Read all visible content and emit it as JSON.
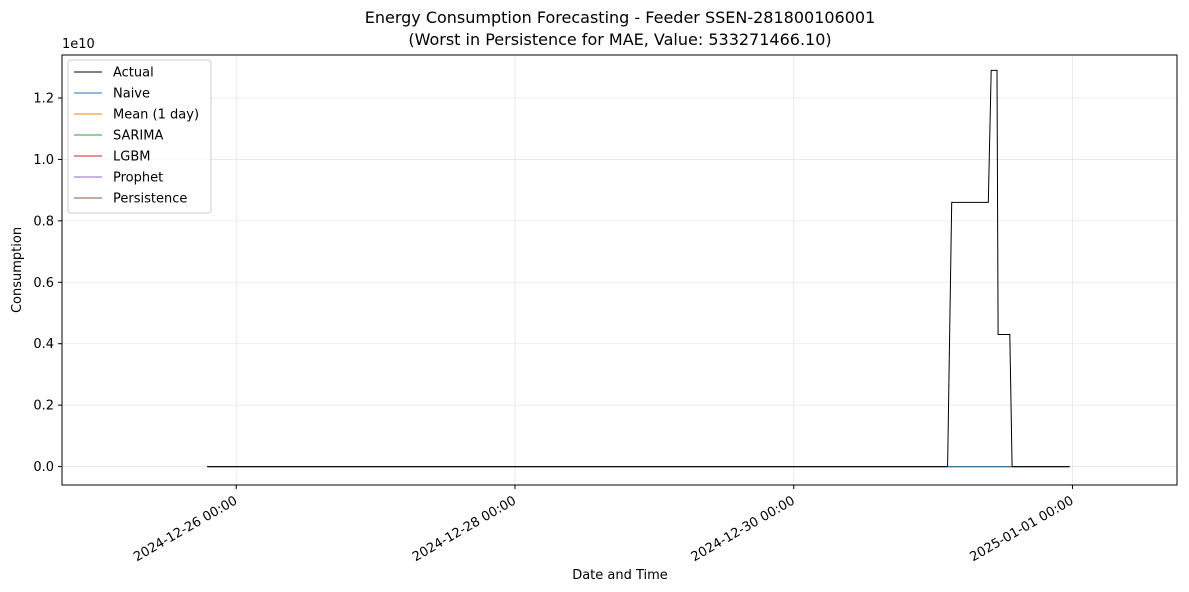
{
  "chart_data": {
    "type": "line",
    "title": "Energy Consumption Forecasting - Feeder SSEN-281800106001",
    "subtitle": "(Worst in Persistence for MAE, Value: 533271466.10)",
    "xlabel": "Date and Time",
    "ylabel": "Consumption",
    "y_offset_label": "1e10",
    "x_range_hours": [
      -30,
      162
    ],
    "y_range": [
      -0.06,
      1.34
    ],
    "y_scale_note": "y values expressed in units of 1e10",
    "x_ticks": [
      {
        "hours": 0,
        "label": "2024-12-26 00:00"
      },
      {
        "hours": 48,
        "label": "2024-12-28 00:00"
      },
      {
        "hours": 96,
        "label": "2024-12-30 00:00"
      },
      {
        "hours": 144,
        "label": "2025-01-01 00:00"
      }
    ],
    "y_ticks": [
      {
        "value": 0.0,
        "label": "0.0"
      },
      {
        "value": 0.2,
        "label": "0.2"
      },
      {
        "value": 0.4,
        "label": "0.4"
      },
      {
        "value": 0.6,
        "label": "0.6"
      },
      {
        "value": 0.8,
        "label": "0.8"
      },
      {
        "value": 1.0,
        "label": "1.0"
      },
      {
        "value": 1.2,
        "label": "1.2"
      }
    ],
    "grid": true,
    "legend_position": "top-left",
    "series": [
      {
        "name": "Actual",
        "color": "#000000",
        "x": [
          -5,
          122.5,
          123.2,
          129.5,
          130.0,
          131.0,
          131.2,
          132.2,
          132.4,
          133.2,
          133.6,
          143.5
        ],
        "y": [
          0,
          0,
          0.86,
          0.86,
          1.29,
          1.29,
          0.43,
          0.43,
          0.43,
          0.43,
          0,
          0
        ]
      },
      {
        "name": "Naive",
        "color": "#1f77b4",
        "x": [
          -5,
          143.5
        ],
        "y": [
          0,
          0
        ]
      },
      {
        "name": "Mean (1 day)",
        "color": "#ff7f0e",
        "x": [
          -5,
          143.5
        ],
        "y": [
          0,
          0
        ]
      },
      {
        "name": "SARIMA",
        "color": "#2ca02c",
        "x": [
          -5,
          143.5
        ],
        "y": [
          0,
          0
        ]
      },
      {
        "name": "LGBM",
        "color": "#d62728",
        "x": [
          -5,
          143.5
        ],
        "y": [
          0,
          0
        ]
      },
      {
        "name": "Prophet",
        "color": "#9467bd",
        "x": [
          -5,
          143.5
        ],
        "y": [
          0,
          0
        ]
      },
      {
        "name": "Persistence",
        "color": "#8c564b",
        "x": [
          -5,
          143.5
        ],
        "y": [
          0,
          0
        ]
      }
    ]
  }
}
